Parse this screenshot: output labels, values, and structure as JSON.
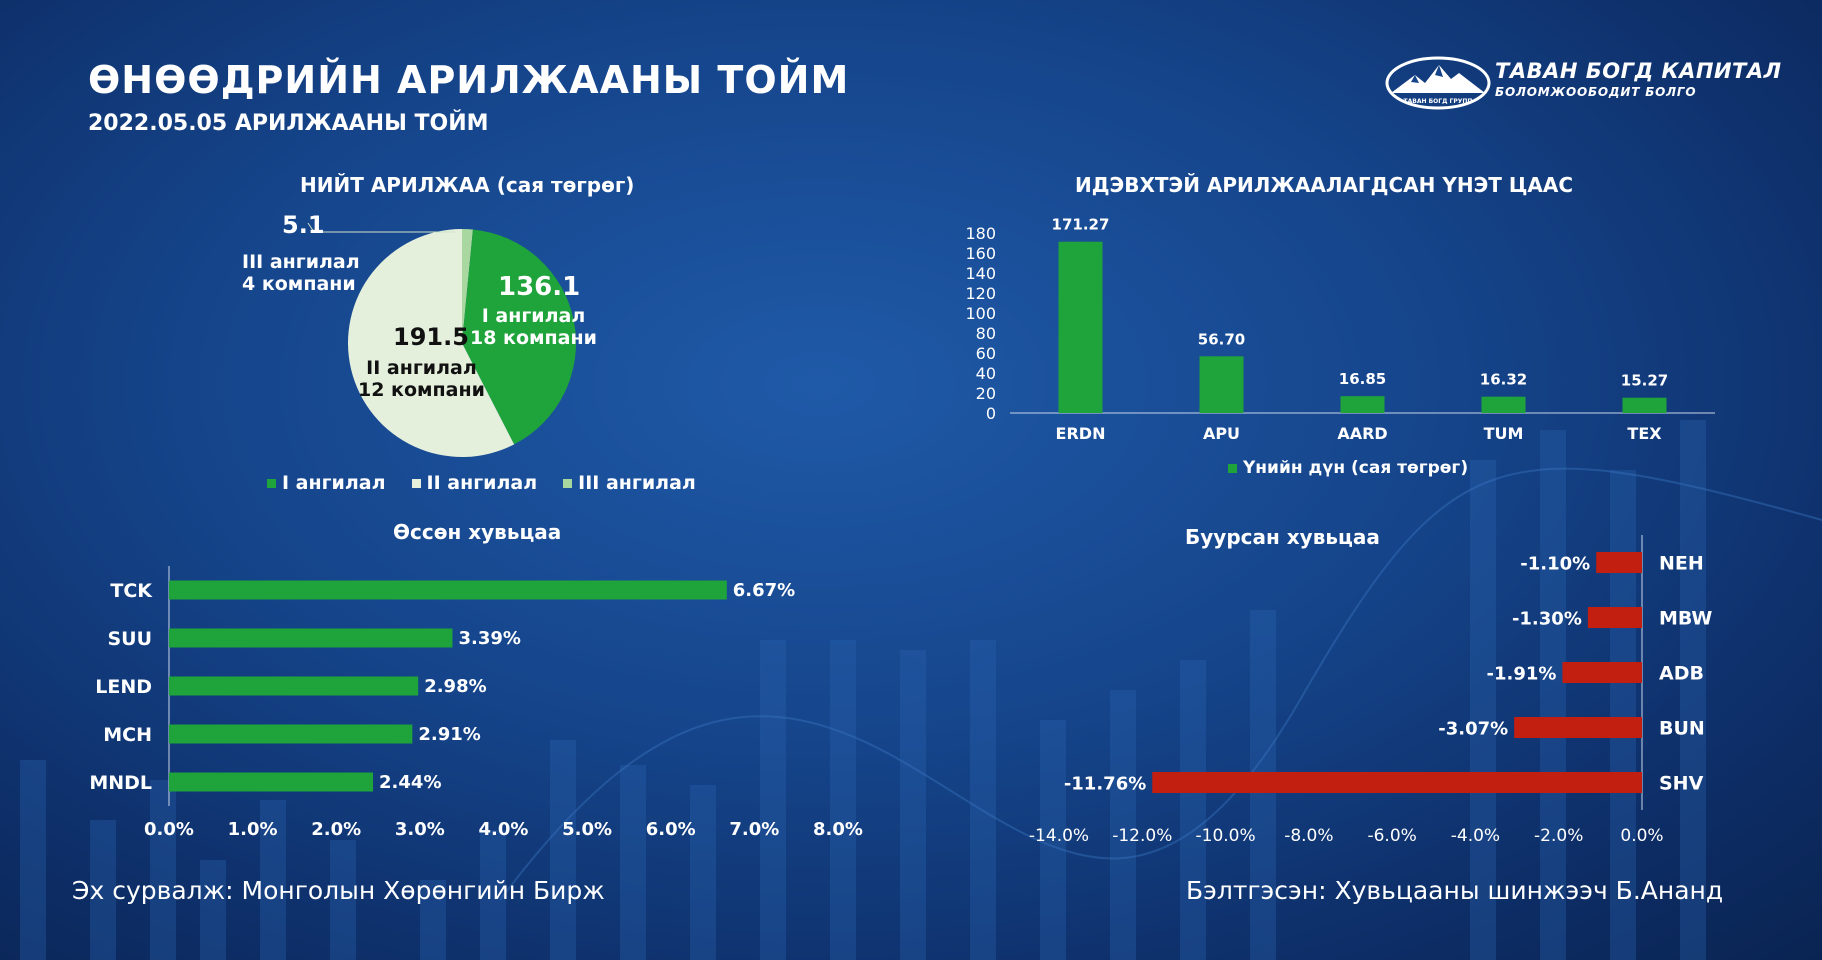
{
  "header": {
    "title": "ӨНӨӨДРИЙН АРИЛЖААНЫ ТОЙМ",
    "subtitle": "2022.05.05 АРИЛЖААНЫ ТОЙМ"
  },
  "logo": {
    "name": "ТАВАН БОГД КАПИТАЛ",
    "slogan": "БОЛОМЖООБОДИТ БОЛГО",
    "emblem_text": "ТАВАН БОГД ГРУПП"
  },
  "colors": {
    "green": "#1fa33b",
    "pale": "#e4f0dc",
    "light_green": "#a8d8a0",
    "red": "#c21f10"
  },
  "chart_data": [
    {
      "id": "total-trade",
      "type": "pie",
      "title": "НИЙТ АРИЛЖАА (сая төгрөг)",
      "slices": [
        {
          "legend": "I ангилал",
          "value": 136.1,
          "value_label": "136.1",
          "desc1": "I ангилал",
          "desc2": "18 компани",
          "color": "#1fa33b"
        },
        {
          "legend": "II ангилал",
          "value": 191.5,
          "value_label": "191.5",
          "desc1": "II ангилал",
          "desc2": "12 компани",
          "color": "#e4f0dc"
        },
        {
          "legend": "III ангилал",
          "value": 5.1,
          "value_label": "5.1",
          "desc1": "III ангилал",
          "desc2": "4 компани",
          "color": "#a8d8a0"
        }
      ],
      "legend_position": "bottom"
    },
    {
      "id": "active-securities",
      "type": "bar",
      "title": "ИДЭВХТЭЙ АРИЛЖААЛАГДСАН ҮНЭТ ЦААС",
      "categories": [
        "ERDN",
        "APU",
        "AARD",
        "TUM",
        "TEX"
      ],
      "values": [
        171.27,
        56.7,
        16.85,
        16.32,
        15.27
      ],
      "value_labels": [
        "171.27",
        "56.70",
        "16.85",
        "16.32",
        "15.27"
      ],
      "series_name": "Үнийн дүн (сая төгрөг)",
      "ylim": [
        0,
        180
      ],
      "yticks": [
        "0",
        "20",
        "40",
        "60",
        "80",
        "100",
        "120",
        "140",
        "160",
        "180"
      ],
      "legend_position": "bottom"
    },
    {
      "id": "gainers",
      "type": "bar",
      "orientation": "horizontal",
      "title": "Өссөн хувьцаа",
      "categories": [
        "TCK",
        "SUU",
        "LEND",
        "MCH",
        "MNDL"
      ],
      "values": [
        6.67,
        3.39,
        2.98,
        2.91,
        2.44
      ],
      "value_labels": [
        "6.67%",
        "3.39%",
        "2.98%",
        "2.91%",
        "2.44%"
      ],
      "xlim": [
        0,
        8
      ],
      "xticks": [
        "0.0%",
        "1.0%",
        "2.0%",
        "3.0%",
        "4.0%",
        "5.0%",
        "6.0%",
        "7.0%",
        "8.0%"
      ]
    },
    {
      "id": "losers",
      "type": "bar",
      "orientation": "horizontal",
      "title": "Буурсан хувьцаа",
      "categories": [
        "NEH",
        "MBW",
        "ADB",
        "BUN",
        "SHV"
      ],
      "values": [
        -1.1,
        -1.3,
        -1.91,
        -3.07,
        -11.76
      ],
      "value_labels": [
        "-1.10%",
        "-1.30%",
        "-1.91%",
        "-3.07%",
        "-11.76%"
      ],
      "xlim": [
        -14,
        0
      ],
      "xticks": [
        "-14.0%",
        "-12.0%",
        "-10.0%",
        "-8.0%",
        "-6.0%",
        "-4.0%",
        "-2.0%",
        "0.0%"
      ]
    }
  ],
  "footer": {
    "source": "Эх сурвалж: Монголын Хөрөнгийн Бирж",
    "author": "Бэлтгэсэн: Хувьцааны шинжээч Б.Ананд"
  }
}
